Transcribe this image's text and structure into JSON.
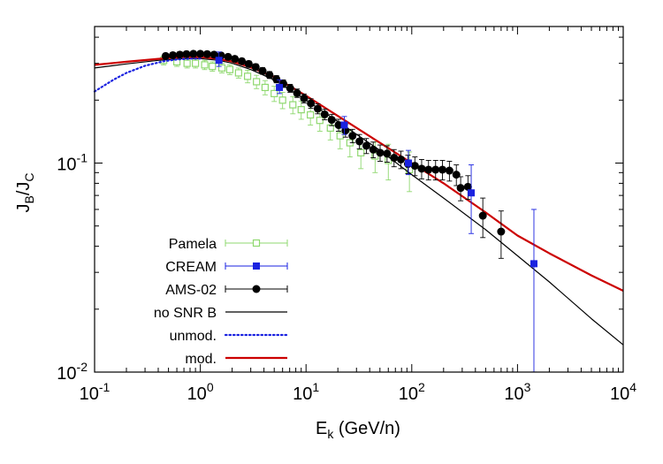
{
  "chart_data": {
    "type": "scatter",
    "title": "",
    "xlabel": "E",
    "xlabel_sub": "k",
    "xlabel_unit": " (GeV/n)",
    "ylabel": "J",
    "ylabel_sub1": "B",
    "ylabel_mid": "/J",
    "ylabel_sub2": "C",
    "xscale": "log",
    "yscale": "log",
    "xlim": [
      0.1,
      10000
    ],
    "ylim": [
      0.01,
      0.45
    ],
    "xticks": [
      {
        "value": 0.1,
        "base": "10",
        "exp": "-1"
      },
      {
        "value": 1,
        "base": "10",
        "exp": "0"
      },
      {
        "value": 10,
        "base": "10",
        "exp": "1"
      },
      {
        "value": 100,
        "base": "10",
        "exp": "2"
      },
      {
        "value": 1000,
        "base": "10",
        "exp": "3"
      },
      {
        "value": 10000,
        "base": "10",
        "exp": "4"
      }
    ],
    "yticks": [
      {
        "value": 0.01,
        "base": "10",
        "exp": "-2"
      },
      {
        "value": 0.1,
        "base": "10",
        "exp": "-1"
      }
    ],
    "legend_position": "bottom-left",
    "series": [
      {
        "name": "Pamela",
        "kind": "points",
        "marker": "open-square",
        "color": "#8fd86f",
        "points": [
          {
            "x": 0.45,
            "y": 0.31,
            "err": 0.015
          },
          {
            "x": 0.6,
            "y": 0.305,
            "err": 0.015
          },
          {
            "x": 0.75,
            "y": 0.3,
            "err": 0.015
          },
          {
            "x": 0.9,
            "y": 0.3,
            "err": 0.015
          },
          {
            "x": 1.1,
            "y": 0.295,
            "err": 0.015
          },
          {
            "x": 1.3,
            "y": 0.29,
            "err": 0.015
          },
          {
            "x": 1.6,
            "y": 0.285,
            "err": 0.015
          },
          {
            "x": 1.9,
            "y": 0.28,
            "err": 0.015
          },
          {
            "x": 2.3,
            "y": 0.27,
            "err": 0.015
          },
          {
            "x": 2.8,
            "y": 0.26,
            "err": 0.018
          },
          {
            "x": 3.4,
            "y": 0.245,
            "err": 0.018
          },
          {
            "x": 4.1,
            "y": 0.23,
            "err": 0.018
          },
          {
            "x": 5.0,
            "y": 0.215,
            "err": 0.018
          },
          {
            "x": 6.0,
            "y": 0.2,
            "err": 0.018
          },
          {
            "x": 7.5,
            "y": 0.19,
            "err": 0.018
          },
          {
            "x": 9.0,
            "y": 0.18,
            "err": 0.018
          },
          {
            "x": 11,
            "y": 0.17,
            "err": 0.018
          },
          {
            "x": 13.5,
            "y": 0.16,
            "err": 0.018
          },
          {
            "x": 17,
            "y": 0.147,
            "err": 0.018
          },
          {
            "x": 21,
            "y": 0.135,
            "err": 0.018
          },
          {
            "x": 26,
            "y": 0.125,
            "err": 0.018
          },
          {
            "x": 33,
            "y": 0.112,
            "err": 0.018
          },
          {
            "x": 45,
            "y": 0.108,
            "err": 0.018
          },
          {
            "x": 60,
            "y": 0.103,
            "err": 0.02
          },
          {
            "x": 95,
            "y": 0.093,
            "err": 0.02
          }
        ]
      },
      {
        "name": "CREAM",
        "kind": "points",
        "marker": "filled-square",
        "color": "#1a22e0",
        "points": [
          {
            "x": 1.5,
            "y": 0.31,
            "err_up": 0.03,
            "err_down": 0.02
          },
          {
            "x": 5.6,
            "y": 0.23,
            "err_up": 0.02,
            "err_down": 0.015
          },
          {
            "x": 23,
            "y": 0.152,
            "err_up": 0.015,
            "err_down": 0.015
          },
          {
            "x": 93,
            "y": 0.1,
            "err_up": 0.015,
            "err_down": 0.012
          },
          {
            "x": 365,
            "y": 0.072,
            "err_up": 0.026,
            "err_down": 0.026
          },
          {
            "x": 1430,
            "y": 0.033,
            "err_up": 0.027,
            "err_down": 0.023
          }
        ]
      },
      {
        "name": "AMS-02",
        "kind": "points",
        "marker": "filled-circle",
        "color": "#000000",
        "points": [
          {
            "x": 0.47,
            "y": 0.325,
            "err": 0.01
          },
          {
            "x": 0.55,
            "y": 0.328,
            "err": 0.01
          },
          {
            "x": 0.64,
            "y": 0.33,
            "err": 0.01
          },
          {
            "x": 0.74,
            "y": 0.332,
            "err": 0.01
          },
          {
            "x": 0.86,
            "y": 0.333,
            "err": 0.01
          },
          {
            "x": 1.0,
            "y": 0.333,
            "err": 0.01
          },
          {
            "x": 1.16,
            "y": 0.332,
            "err": 0.01
          },
          {
            "x": 1.35,
            "y": 0.33,
            "err": 0.01
          },
          {
            "x": 1.57,
            "y": 0.327,
            "err": 0.01
          },
          {
            "x": 1.83,
            "y": 0.322,
            "err": 0.01
          },
          {
            "x": 2.12,
            "y": 0.315,
            "err": 0.01
          },
          {
            "x": 2.47,
            "y": 0.307,
            "err": 0.01
          },
          {
            "x": 2.87,
            "y": 0.298,
            "err": 0.01
          },
          {
            "x": 3.34,
            "y": 0.288,
            "err": 0.01
          },
          {
            "x": 3.88,
            "y": 0.276,
            "err": 0.01
          },
          {
            "x": 4.51,
            "y": 0.264,
            "err": 0.01
          },
          {
            "x": 5.24,
            "y": 0.252,
            "err": 0.01
          },
          {
            "x": 6.09,
            "y": 0.24,
            "err": 0.01
          },
          {
            "x": 7.08,
            "y": 0.228,
            "err": 0.01
          },
          {
            "x": 8.23,
            "y": 0.216,
            "err": 0.01
          },
          {
            "x": 9.57,
            "y": 0.204,
            "err": 0.01
          },
          {
            "x": 11.1,
            "y": 0.193,
            "err": 0.01
          },
          {
            "x": 12.9,
            "y": 0.182,
            "err": 0.01
          },
          {
            "x": 15.0,
            "y": 0.171,
            "err": 0.01
          },
          {
            "x": 17.5,
            "y": 0.161,
            "err": 0.01
          },
          {
            "x": 20.3,
            "y": 0.152,
            "err": 0.01
          },
          {
            "x": 23.6,
            "y": 0.143,
            "err": 0.01
          },
          {
            "x": 27.5,
            "y": 0.135,
            "err": 0.01
          },
          {
            "x": 32.0,
            "y": 0.127,
            "err": 0.01
          },
          {
            "x": 37.2,
            "y": 0.121,
            "err": 0.01
          },
          {
            "x": 43.2,
            "y": 0.116,
            "err": 0.01
          },
          {
            "x": 50.2,
            "y": 0.112,
            "err": 0.01
          },
          {
            "x": 58.4,
            "y": 0.111,
            "err": 0.01
          },
          {
            "x": 68.0,
            "y": 0.106,
            "err": 0.01
          },
          {
            "x": 79,
            "y": 0.104,
            "err": 0.01
          },
          {
            "x": 92,
            "y": 0.099,
            "err": 0.01
          },
          {
            "x": 107,
            "y": 0.097,
            "err": 0.01
          },
          {
            "x": 124,
            "y": 0.094,
            "err": 0.01
          },
          {
            "x": 144,
            "y": 0.093,
            "err": 0.01
          },
          {
            "x": 168,
            "y": 0.093,
            "err": 0.01
          },
          {
            "x": 195,
            "y": 0.093,
            "err": 0.01
          },
          {
            "x": 227,
            "y": 0.092,
            "err": 0.01
          },
          {
            "x": 264,
            "y": 0.088,
            "err": 0.01
          },
          {
            "x": 290,
            "y": 0.076,
            "err": 0.01
          },
          {
            "x": 340,
            "y": 0.077,
            "err": 0.01
          },
          {
            "x": 470,
            "y": 0.056,
            "err": 0.012
          },
          {
            "x": 700,
            "y": 0.047,
            "err": 0.012
          }
        ]
      },
      {
        "name": "no SNR B",
        "kind": "line",
        "style": "solid",
        "width": 1.2,
        "color": "#000000",
        "points": [
          [
            0.1,
            0.285
          ],
          [
            0.2,
            0.298
          ],
          [
            0.4,
            0.31
          ],
          [
            0.7,
            0.316
          ],
          [
            1,
            0.316
          ],
          [
            1.5,
            0.31
          ],
          [
            2,
            0.3
          ],
          [
            3,
            0.28
          ],
          [
            5,
            0.25
          ],
          [
            10,
            0.2
          ],
          [
            20,
            0.158
          ],
          [
            50,
            0.115
          ],
          [
            100,
            0.088
          ],
          [
            200,
            0.068
          ],
          [
            500,
            0.048
          ],
          [
            1000,
            0.036
          ],
          [
            2000,
            0.027
          ],
          [
            5000,
            0.018
          ],
          [
            10000,
            0.0135
          ]
        ]
      },
      {
        "name": "unmod.",
        "kind": "line",
        "style": "dotted",
        "width": 2.2,
        "color": "#1a22e0",
        "points": [
          [
            0.1,
            0.22
          ],
          [
            0.15,
            0.25
          ],
          [
            0.2,
            0.27
          ],
          [
            0.3,
            0.292
          ],
          [
            0.45,
            0.307
          ],
          [
            0.6,
            0.313
          ],
          [
            0.8,
            0.316
          ],
          [
            1,
            0.316
          ]
        ]
      },
      {
        "name": "mod.",
        "kind": "line",
        "style": "solid",
        "width": 2.2,
        "color": "#cc0000",
        "points": [
          [
            0.1,
            0.295
          ],
          [
            0.2,
            0.305
          ],
          [
            0.4,
            0.315
          ],
          [
            0.7,
            0.322
          ],
          [
            1,
            0.322
          ],
          [
            1.5,
            0.315
          ],
          [
            2,
            0.306
          ],
          [
            3,
            0.287
          ],
          [
            5,
            0.258
          ],
          [
            10,
            0.21
          ],
          [
            20,
            0.168
          ],
          [
            50,
            0.125
          ],
          [
            100,
            0.1
          ],
          [
            200,
            0.08
          ],
          [
            500,
            0.058
          ],
          [
            1000,
            0.045
          ],
          [
            2000,
            0.037
          ],
          [
            5000,
            0.029
          ],
          [
            10000,
            0.0245
          ]
        ]
      }
    ]
  }
}
